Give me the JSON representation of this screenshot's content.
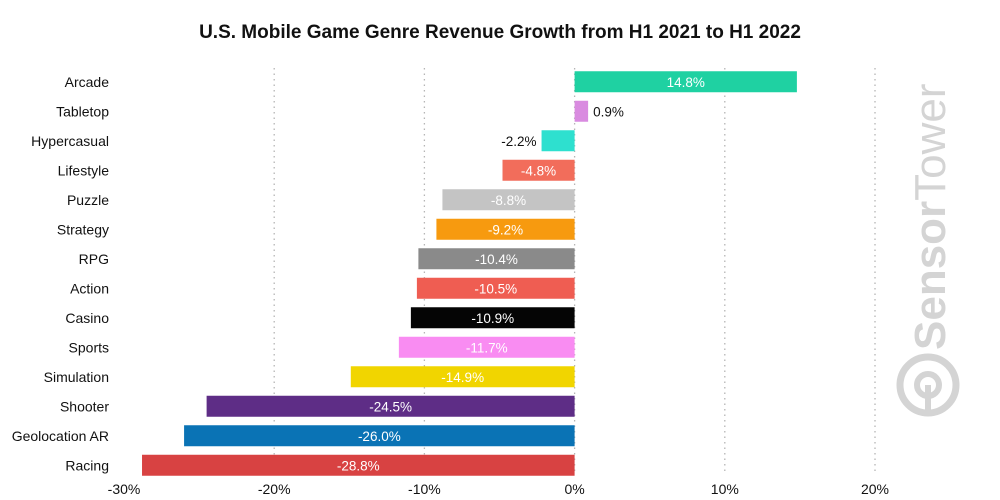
{
  "chart_data": {
    "type": "bar",
    "orientation": "horizontal",
    "title": "U.S. Mobile Game Genre Revenue Growth from H1 2021 to H1 2022",
    "categories": [
      "Arcade",
      "Tabletop",
      "Hypercasual",
      "Lifestyle",
      "Puzzle",
      "Strategy",
      "RPG",
      "Action",
      "Casino",
      "Sports",
      "Simulation",
      "Shooter",
      "Geolocation AR",
      "Racing"
    ],
    "values": [
      14.8,
      0.9,
      -2.2,
      -4.8,
      -8.8,
      -9.2,
      -10.4,
      -10.5,
      -10.9,
      -11.7,
      -14.9,
      -24.5,
      -26.0,
      -28.8
    ],
    "data_labels": [
      "14.8%",
      "0.9%",
      "-2.2%",
      "-4.8%",
      "-8.8%",
      "-9.2%",
      "-10.4%",
      "-10.5%",
      "-10.9%",
      "-11.7%",
      "-14.9%",
      "-24.5%",
      "-26.0%",
      "-28.8%"
    ],
    "colors": [
      "#1fd1a2",
      "#d98be0",
      "#2ee0cf",
      "#f26d5b",
      "#c4c4c4",
      "#f79a0f",
      "#8a8a8a",
      "#ef5d52",
      "#050505",
      "#f98cf2",
      "#f1d500",
      "#5e2d86",
      "#0a73b5",
      "#d84242"
    ],
    "label_colors": [
      "#ffffff",
      "#111111",
      "#111111",
      "#ffffff",
      "#ffffff",
      "#ffffff",
      "#ffffff",
      "#ffffff",
      "#ffffff",
      "#ffffff",
      "#ffffff",
      "#ffffff",
      "#ffffff",
      "#ffffff"
    ],
    "xlim": [
      -30,
      20
    ],
    "xticks": [
      -30,
      -20,
      -10,
      0,
      10,
      20
    ],
    "xtick_labels": [
      "-30%",
      "-20%",
      "-10%",
      "0%",
      "10%",
      "20%"
    ],
    "grid": "vertical dotted",
    "xlabel": "",
    "ylabel": ""
  },
  "watermark": {
    "brand_bold": "Sensor",
    "brand_light": "Tower",
    "logo_icon": "sensortower-logo-icon"
  }
}
